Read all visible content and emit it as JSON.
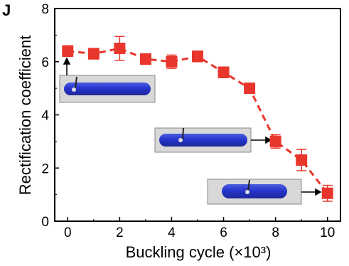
{
  "chart_data": {
    "type": "line",
    "panel_label": "J",
    "xlabel": "Buckling cycle (×10³)",
    "ylabel": "Rectification coefficient",
    "xlim": [
      -0.5,
      10.5
    ],
    "ylim": [
      0,
      8
    ],
    "x_ticks": [
      0,
      2,
      4,
      6,
      8,
      10
    ],
    "y_ticks": [
      0,
      2,
      4,
      6,
      8
    ],
    "marker": "square",
    "line_style": "dashed",
    "color": "#e8362c",
    "series": [
      {
        "x": [
          0,
          1,
          2,
          3,
          4,
          5,
          6,
          7,
          8,
          9,
          10
        ],
        "y": [
          6.4,
          6.3,
          6.5,
          6.1,
          6.0,
          6.2,
          5.6,
          5.0,
          3.0,
          2.3,
          1.05
        ],
        "error": [
          0.2,
          0.2,
          0.45,
          0.2,
          0.25,
          0.2,
          0.2,
          0.15,
          0.25,
          0.4,
          0.3
        ]
      }
    ],
    "insets": [
      {
        "name": "inset-cycle-0",
        "points_to_x": 0,
        "description": "blue electrode photo"
      },
      {
        "name": "inset-cycle-8",
        "points_to_x": 8,
        "description": "blue electrode photo"
      },
      {
        "name": "inset-cycle-10",
        "points_to_x": 10,
        "description": "blue electrode photo"
      }
    ]
  }
}
